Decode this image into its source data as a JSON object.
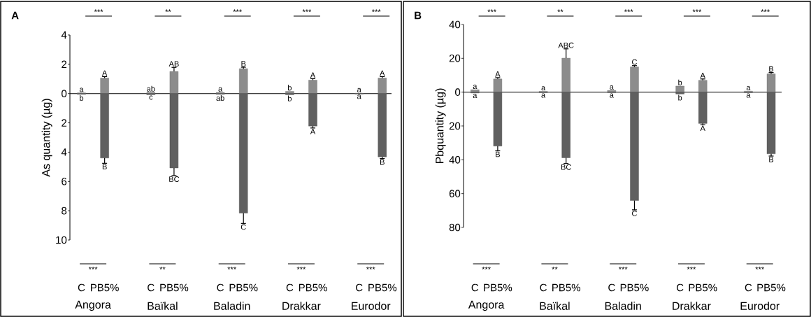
{
  "chart_data": [
    {
      "type": "bar",
      "title": "A",
      "ylabel": "As quantity (µg)",
      "stacked": true,
      "categories": [
        "C",
        "PB5%",
        "C",
        "PB5%",
        "C",
        "PB5%",
        "C",
        "PB5%",
        "C",
        "PB5%"
      ],
      "series": [
        {
          "color": "#8c8c8c",
          "values": [
            0.05,
            1.06,
            0.08,
            1.51,
            0.08,
            1.7,
            0.15,
            0.92,
            0.03,
            1.06
          ],
          "errors": [
            null,
            0.1,
            null,
            0.28,
            null,
            0.1,
            null,
            0.1,
            null,
            0.1
          ],
          "value_labels": [
            "a",
            "A",
            "ab",
            "AB",
            "a",
            "B",
            "b",
            "A",
            "a",
            "A"
          ]
        },
        {
          "color": "#606060",
          "values": [
            -0.05,
            -4.4,
            -0.08,
            -5.08,
            -0.05,
            -8.16,
            -0.08,
            -2.22,
            -0.02,
            -4.32
          ],
          "errors": [
            null,
            0.36,
            null,
            0.52,
            null,
            0.71,
            null,
            0.13,
            null,
            0.12
          ],
          "value_labels": [
            "b",
            "B",
            "c",
            "BC",
            "ab",
            "C",
            "b",
            "A",
            "a",
            "B"
          ]
        }
      ],
      "ylim": [
        -10,
        4
      ],
      "yticks": [
        4,
        2,
        0,
        {
          "value": -2,
          "label": "2"
        },
        {
          "value": -4,
          "label": "4"
        },
        {
          "value": -6,
          "label": "6"
        },
        {
          "value": -8,
          "label": "8"
        },
        {
          "value": -10,
          "label": "10"
        }
      ],
      "annotations": [
        "***",
        "**",
        "***",
        "***",
        "***",
        "***",
        "**",
        "***",
        "***",
        "***",
        "Angora",
        "Baïkal",
        "Baladin",
        "Drakkar",
        "Eurodor"
      ]
    },
    {
      "type": "bar",
      "title": "B",
      "ylabel": "Pbquantity (µg)",
      "stacked": true,
      "categories": [
        "C",
        "PB5%",
        "C",
        "PB5%",
        "C",
        "PB5%",
        "C",
        "PB5%",
        "C",
        "PB5%"
      ],
      "series": [
        {
          "color": "#8c8c8c",
          "values": [
            1.4,
            7.8,
            0.5,
            20.1,
            1.0,
            14.9,
            3.6,
            7.0,
            0.6,
            10.8
          ],
          "errors": [
            null,
            0.8,
            null,
            5.5,
            null,
            0.8,
            null,
            0.8,
            null,
            0.8
          ],
          "value_labels": [
            "a",
            "A",
            "a",
            "ABC",
            "a",
            "C",
            "b",
            "A",
            "a",
            "B"
          ]
        },
        {
          "color": "#606060",
          "values": [
            -0.5,
            -31.9,
            -0.3,
            -38.8,
            -0.3,
            -64.1,
            -1.1,
            -18.5,
            -0.3,
            -36.5
          ],
          "errors": [
            null,
            2.8,
            null,
            3.4,
            null,
            5.5,
            null,
            0.8,
            null,
            1.3
          ],
          "value_labels": [
            "a",
            "B",
            "a",
            "BC",
            "a",
            "C",
            "b",
            "A",
            "a",
            "B"
          ]
        }
      ],
      "ylim": [
        -80,
        40
      ],
      "yticks": [
        40,
        20,
        0,
        {
          "value": -20,
          "label": "20"
        },
        {
          "value": -40,
          "label": "40"
        },
        {
          "value": -60,
          "label": "60"
        },
        {
          "value": -80,
          "label": "80"
        }
      ],
      "annotations": [
        "***",
        "**",
        "***",
        "***",
        "***",
        "***",
        "**",
        "***",
        "***",
        "***",
        "Angora",
        "Baïkal",
        "Baladin",
        "Drakkar",
        "Eurodor"
      ]
    }
  ]
}
